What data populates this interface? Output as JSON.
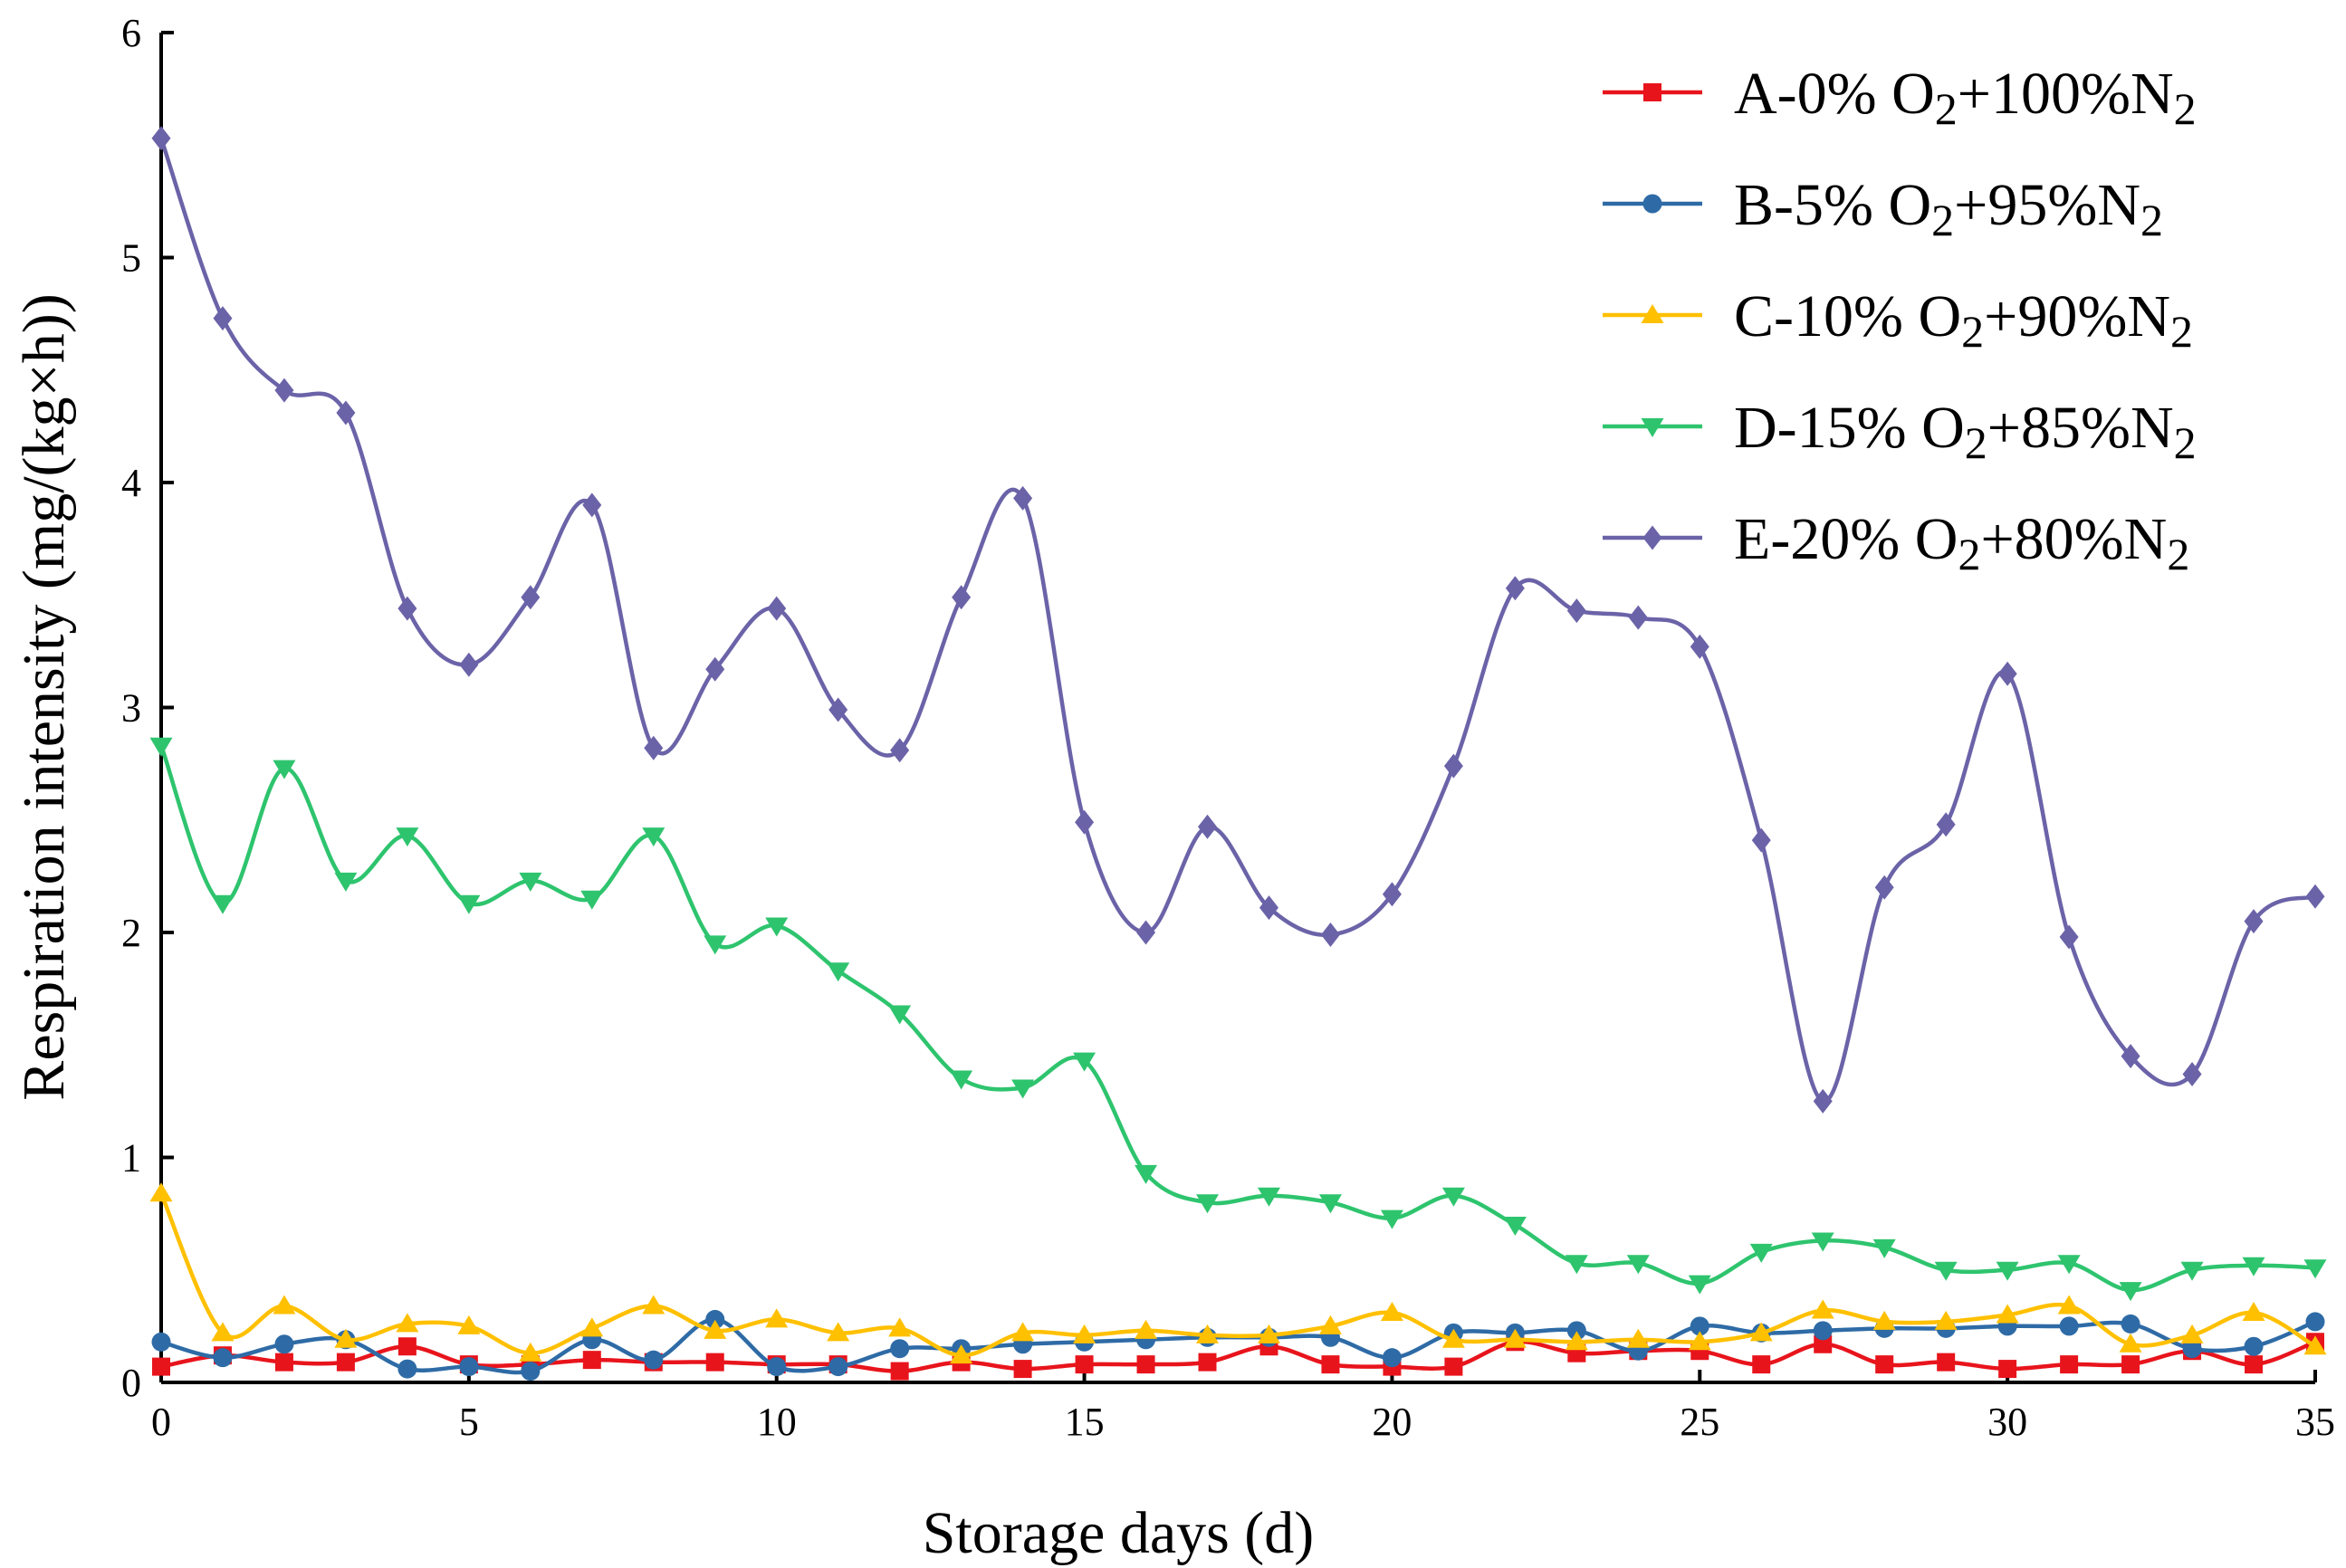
{
  "chart_data": {
    "type": "line",
    "xlabel": "Storage days (d)",
    "ylabel": "Respiration intensity (mg/(kg×h))",
    "xlim": [
      0,
      35
    ],
    "ylim": [
      0,
      6
    ],
    "xticks": [
      0,
      5,
      10,
      15,
      20,
      25,
      30,
      35
    ],
    "yticks": [
      0,
      1,
      2,
      3,
      4,
      5,
      6
    ],
    "grid": false,
    "legend_position": "top-right",
    "x": [
      0,
      1,
      2,
      3,
      4,
      5,
      6,
      7,
      8,
      9,
      10,
      11,
      12,
      13,
      14,
      15,
      16,
      17,
      18,
      19,
      20,
      21,
      22,
      23,
      24,
      25,
      26,
      27,
      28,
      29,
      30,
      31,
      32,
      33,
      34,
      35
    ],
    "series": [
      {
        "name_parts": [
          "A-0% O",
          "2",
          "+100%N",
          "2"
        ],
        "color": "#e8141c",
        "marker": "square",
        "values": [
          0.07,
          0.12,
          0.09,
          0.09,
          0.16,
          0.08,
          0.08,
          0.1,
          0.09,
          0.09,
          0.08,
          0.08,
          0.05,
          0.09,
          0.06,
          0.08,
          0.08,
          0.09,
          0.16,
          0.08,
          0.07,
          0.07,
          0.18,
          0.13,
          0.14,
          0.14,
          0.08,
          0.17,
          0.08,
          0.09,
          0.06,
          0.08,
          0.08,
          0.14,
          0.08,
          0.18
        ]
      },
      {
        "name_parts": [
          "B-5% O",
          "2",
          "+95%N",
          "2"
        ],
        "color": "#2e6ba6",
        "marker": "circle",
        "values": [
          0.18,
          0.11,
          0.17,
          0.19,
          0.06,
          0.07,
          0.05,
          0.19,
          0.1,
          0.28,
          0.07,
          0.07,
          0.15,
          0.15,
          0.17,
          0.18,
          0.19,
          0.2,
          0.2,
          0.2,
          0.11,
          0.22,
          0.22,
          0.23,
          0.14,
          0.25,
          0.22,
          0.23,
          0.24,
          0.24,
          0.25,
          0.25,
          0.26,
          0.15,
          0.16,
          0.27
        ]
      },
      {
        "name_parts": [
          "C-10% O",
          "2",
          "+90%N",
          "2"
        ],
        "color": "#ffc000",
        "marker": "triangle-up",
        "values": [
          0.84,
          0.22,
          0.34,
          0.19,
          0.26,
          0.25,
          0.13,
          0.24,
          0.34,
          0.23,
          0.28,
          0.22,
          0.24,
          0.12,
          0.22,
          0.21,
          0.23,
          0.21,
          0.21,
          0.25,
          0.31,
          0.19,
          0.19,
          0.18,
          0.19,
          0.18,
          0.22,
          0.32,
          0.27,
          0.27,
          0.3,
          0.34,
          0.17,
          0.21,
          0.31,
          0.16
        ]
      },
      {
        "name_parts": [
          "D-15% O",
          "2",
          "+85%N",
          "2"
        ],
        "color": "#2ec46e",
        "marker": "triangle-down",
        "values": [
          2.83,
          2.13,
          2.73,
          2.23,
          2.43,
          2.13,
          2.23,
          2.15,
          2.43,
          1.95,
          2.03,
          1.83,
          1.64,
          1.35,
          1.31,
          1.43,
          0.93,
          0.8,
          0.83,
          0.8,
          0.73,
          0.83,
          0.7,
          0.53,
          0.53,
          0.44,
          0.58,
          0.63,
          0.6,
          0.5,
          0.5,
          0.53,
          0.41,
          0.5,
          0.52,
          0.51
        ]
      },
      {
        "name_parts": [
          "E-20% O",
          "2",
          "+80%N",
          "2"
        ],
        "color": "#6b63a8",
        "marker": "diamond",
        "values": [
          5.53,
          4.73,
          4.41,
          4.31,
          3.44,
          3.19,
          3.49,
          3.9,
          2.82,
          3.17,
          3.44,
          2.99,
          2.81,
          3.49,
          3.93,
          2.49,
          2.0,
          2.47,
          2.11,
          1.99,
          2.17,
          2.74,
          3.53,
          3.43,
          3.4,
          3.27,
          2.41,
          1.25,
          2.2,
          2.48,
          3.15,
          1.98,
          1.45,
          1.37,
          2.05,
          2.16
        ]
      }
    ]
  }
}
